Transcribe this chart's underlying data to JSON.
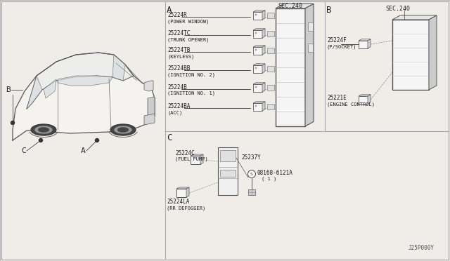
{
  "bg_color": "#f0ede8",
  "line_color": "#333333",
  "part_number_bottom": "J25P000Y",
  "border_color": "#999999",
  "divider_color": "#aaaaaa",
  "section_A_parts": [
    {
      "code": "25224R",
      "desc": "(POWER WINDOW)"
    },
    {
      "code": "25224TC",
      "desc": "(TRUNK OPENER)"
    },
    {
      "code": "25224TB",
      "desc": "(KEYLESS)"
    },
    {
      "code": "25224BB",
      "desc": "(IGNITION NO. 2)"
    },
    {
      "code": "25224B",
      "desc": "(IGNITION NO. 1)"
    },
    {
      "code": "25224BA",
      "desc": "(ACC)"
    }
  ],
  "section_B_top_code": "25224F",
  "section_B_top_desc": "(P/SOCKET)",
  "section_B_bot_code": "25221E",
  "section_B_bot_desc": "(ENGINE CONTROL)",
  "section_C_parts": [
    {
      "code": "25224C",
      "desc": "(FUEL PUMP)"
    },
    {
      "code": "25224LA",
      "desc": "(RR DEFOGGER)"
    },
    {
      "code": "25237Y",
      "desc": ""
    },
    {
      "code": "08168-6121A",
      "desc": "( 1 )"
    }
  ],
  "sec240_text": "SEC.240",
  "label_A": "A",
  "label_B": "B",
  "label_C": "C",
  "car_label_B": "B",
  "car_label_C": "C",
  "car_label_A": "A"
}
